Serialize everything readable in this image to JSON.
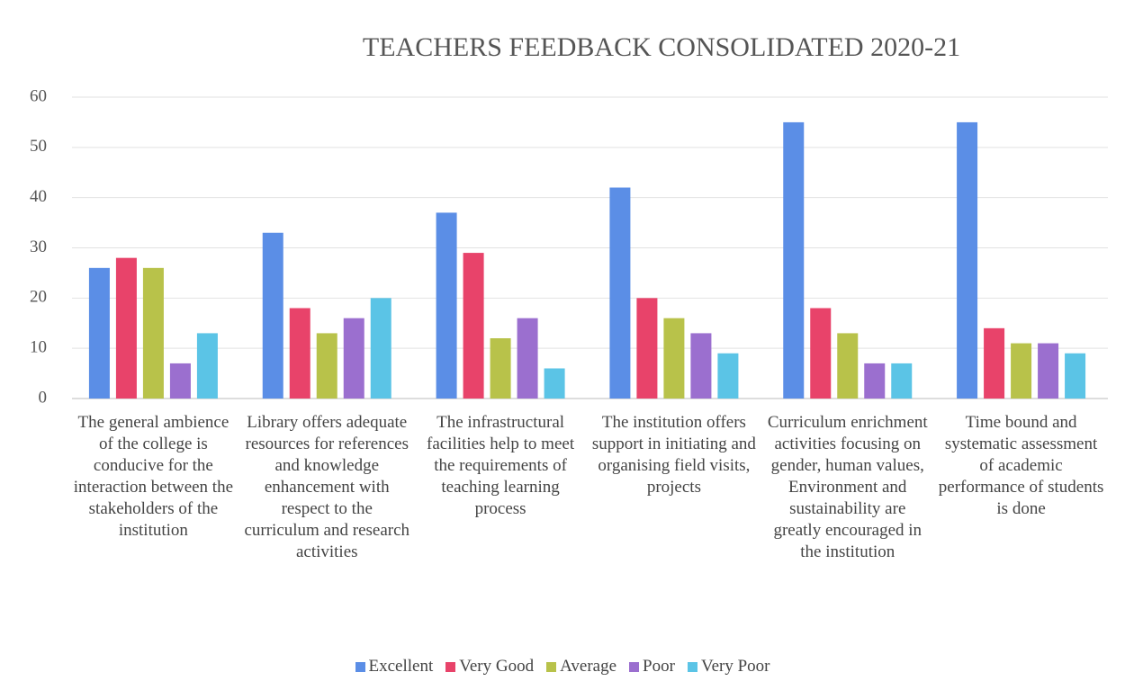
{
  "chart_data": {
    "type": "bar",
    "title": "TEACHERS FEEDBACK CONSOLIDATED 2020-21",
    "categories": [
      "The general ambience of the college is conducive for the interaction between the stakeholders of the institution",
      "Library offers adequate resources for references and knowledge enhancement with respect to the curriculum and research activities",
      "The infrastructural facilities help to meet the requirements of teaching learning process",
      "The institution offers support in initiating and organising field visits, projects",
      "Curriculum enrichment activities focusing on gender, human values, Environment and sustainability are greatly encouraged in the institution",
      "Time bound and systematic assessment of academic performance of students is done"
    ],
    "series": [
      {
        "name": "Excellent",
        "color": "#5b8ee6",
        "values": [
          26,
          33,
          37,
          42,
          55,
          55
        ]
      },
      {
        "name": "Very Good",
        "color": "#e8436a",
        "values": [
          28,
          18,
          29,
          20,
          18,
          14
        ]
      },
      {
        "name": "Average",
        "color": "#b8c24a",
        "values": [
          26,
          13,
          12,
          16,
          13,
          11
        ]
      },
      {
        "name": "Poor",
        "color": "#9b6fcf",
        "values": [
          7,
          16,
          16,
          13,
          7,
          11
        ]
      },
      {
        "name": "Very Poor",
        "color": "#5bc4e6",
        "values": [
          13,
          20,
          6,
          9,
          7,
          9
        ]
      }
    ],
    "ylim": [
      0,
      60
    ],
    "yticks": [
      0,
      10,
      20,
      30,
      40,
      50,
      60
    ],
    "grid": true,
    "legend": "bottom"
  }
}
